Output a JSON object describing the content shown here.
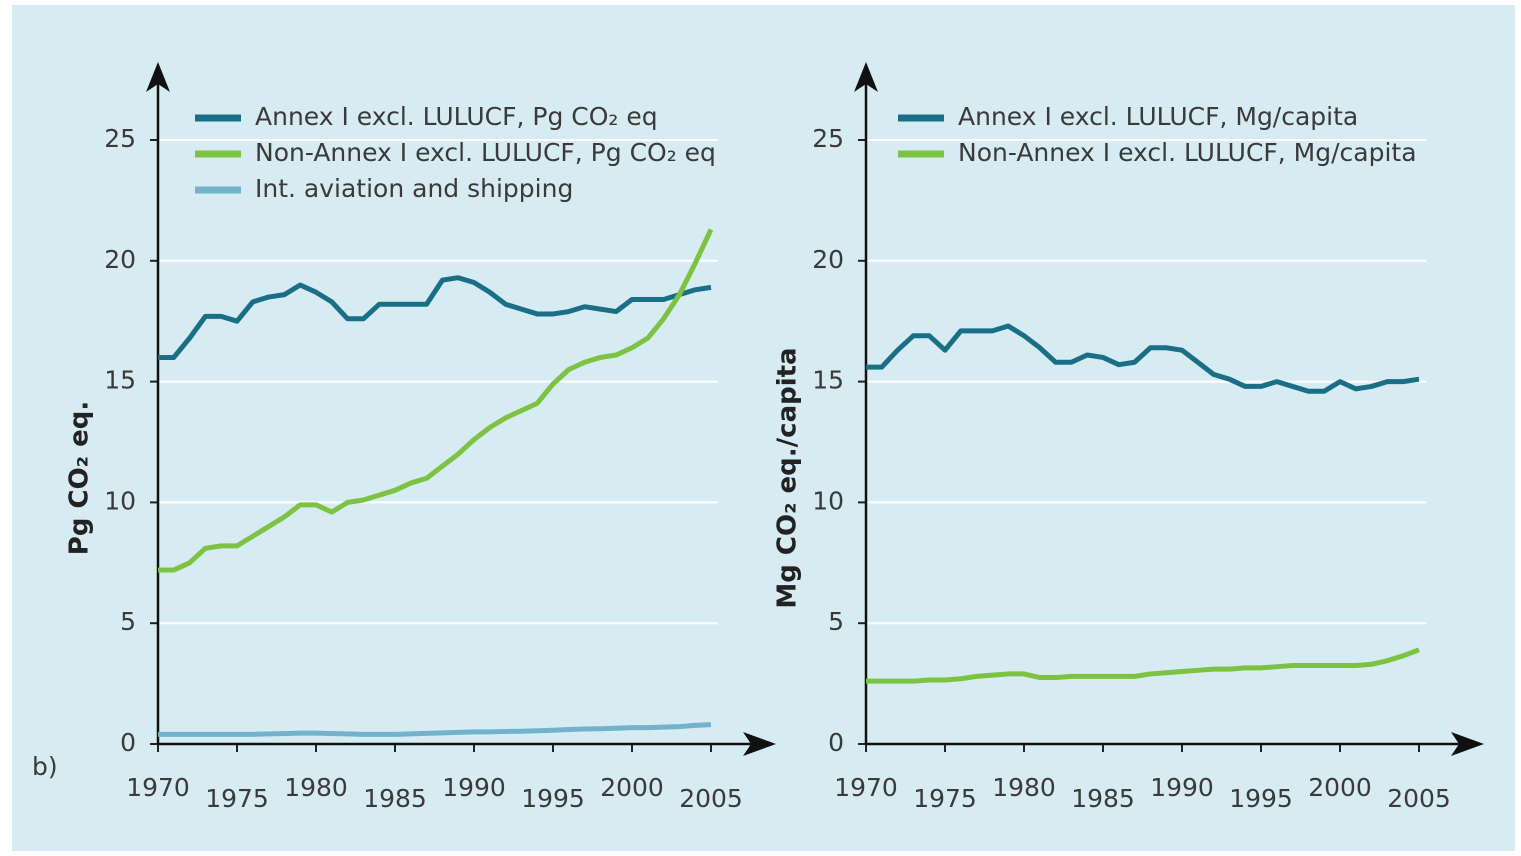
{
  "panel_label": "b)",
  "chart_data": [
    {
      "type": "line",
      "ylabel": "Pg CO₂ eq.",
      "x": [
        1970,
        1971,
        1972,
        1973,
        1974,
        1975,
        1976,
        1977,
        1978,
        1979,
        1980,
        1981,
        1982,
        1983,
        1984,
        1985,
        1986,
        1987,
        1988,
        1989,
        1990,
        1991,
        1992,
        1993,
        1994,
        1995,
        1996,
        1997,
        1998,
        1999,
        2000,
        2001,
        2002,
        2003,
        2004,
        2005
      ],
      "series": [
        {
          "name": "Annex I excl. LULUCF, Pg CO₂ eq",
          "color": "#1a6f87",
          "values": [
            16.0,
            16.0,
            16.8,
            17.7,
            17.7,
            17.5,
            18.3,
            18.5,
            18.6,
            19.0,
            18.7,
            18.3,
            17.6,
            17.6,
            18.2,
            18.2,
            18.2,
            18.2,
            19.2,
            19.3,
            19.1,
            18.7,
            18.2,
            18.0,
            17.8,
            17.8,
            17.9,
            18.1,
            18.0,
            17.9,
            18.4,
            18.4,
            18.4,
            18.6,
            18.8,
            18.9
          ]
        },
        {
          "name": "Non-Annex I excl. LULUCF, Pg CO₂ eq",
          "color": "#7dc242",
          "values": [
            7.2,
            7.2,
            7.5,
            8.1,
            8.2,
            8.2,
            8.6,
            9.0,
            9.4,
            9.9,
            9.9,
            9.6,
            10.0,
            10.1,
            10.3,
            10.5,
            10.8,
            11.0,
            11.5,
            12.0,
            12.6,
            13.1,
            13.5,
            13.8,
            14.1,
            14.9,
            15.5,
            15.8,
            16.0,
            16.1,
            16.4,
            16.8,
            17.6,
            18.6,
            19.9,
            21.3
          ]
        },
        {
          "name": "Int. aviation and shipping",
          "color": "#72b3cb",
          "values": [
            0.4,
            0.4,
            0.4,
            0.4,
            0.4,
            0.4,
            0.4,
            0.42,
            0.43,
            0.45,
            0.45,
            0.43,
            0.42,
            0.4,
            0.4,
            0.4,
            0.42,
            0.44,
            0.46,
            0.48,
            0.5,
            0.5,
            0.52,
            0.53,
            0.55,
            0.57,
            0.6,
            0.62,
            0.63,
            0.65,
            0.68,
            0.68,
            0.7,
            0.72,
            0.77,
            0.8
          ]
        }
      ],
      "xlim": [
        1970,
        2005
      ],
      "xticks": [
        1970,
        1975,
        1980,
        1985,
        1990,
        1995,
        2000,
        2005
      ],
      "ylim": [
        0,
        25
      ],
      "yticks": [
        0,
        5,
        10,
        15,
        20,
        25
      ],
      "grid": true
    },
    {
      "type": "line",
      "ylabel": "Mg CO₂ eq./capita",
      "x": [
        1970,
        1971,
        1972,
        1973,
        1974,
        1975,
        1976,
        1977,
        1978,
        1979,
        1980,
        1981,
        1982,
        1983,
        1984,
        1985,
        1986,
        1987,
        1988,
        1989,
        1990,
        1991,
        1992,
        1993,
        1994,
        1995,
        1996,
        1997,
        1998,
        1999,
        2000,
        2001,
        2002,
        2003,
        2004,
        2005
      ],
      "series": [
        {
          "name": "Annex I excl. LULUCF, Mg/capita",
          "color": "#1a6f87",
          "values": [
            15.6,
            15.6,
            16.3,
            16.9,
            16.9,
            16.3,
            17.1,
            17.1,
            17.1,
            17.3,
            16.9,
            16.4,
            15.8,
            15.8,
            16.1,
            16.0,
            15.7,
            15.8,
            16.4,
            16.4,
            16.3,
            15.8,
            15.3,
            15.1,
            14.8,
            14.8,
            15.0,
            14.8,
            14.6,
            14.6,
            15.0,
            14.7,
            14.8,
            15.0,
            15.0,
            15.1
          ]
        },
        {
          "name": "Non-Annex I excl. LULUCF, Mg/capita",
          "color": "#7dc242",
          "values": [
            2.6,
            2.6,
            2.6,
            2.6,
            2.65,
            2.65,
            2.7,
            2.8,
            2.85,
            2.9,
            2.9,
            2.75,
            2.75,
            2.8,
            2.8,
            2.8,
            2.8,
            2.8,
            2.9,
            2.95,
            3.0,
            3.05,
            3.1,
            3.1,
            3.15,
            3.15,
            3.2,
            3.25,
            3.25,
            3.25,
            3.25,
            3.25,
            3.3,
            3.45,
            3.65,
            3.9
          ]
        }
      ],
      "xlim": [
        1970,
        2005
      ],
      "xticks": [
        1970,
        1975,
        1980,
        1985,
        1990,
        1995,
        2000,
        2005
      ],
      "ylim": [
        0,
        25
      ],
      "yticks": [
        0,
        5,
        10,
        15,
        20,
        25
      ],
      "grid": true
    }
  ]
}
